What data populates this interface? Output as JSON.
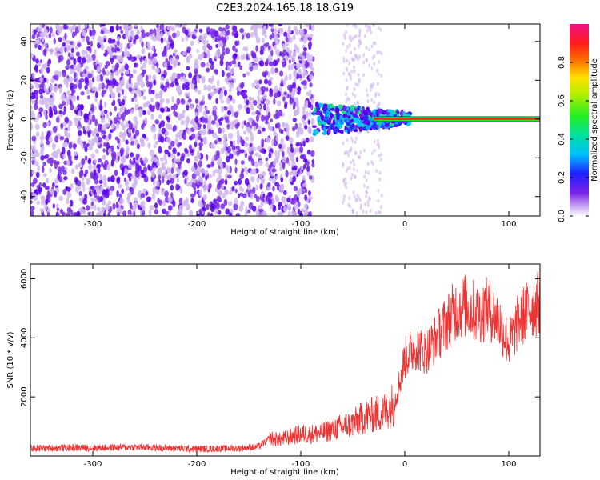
{
  "figure_title": "C2E3.2024.165.18.18.G19",
  "colors": {
    "snr_line": "#ee3333",
    "scatter_low": "#cfb6ee",
    "scatter_mid": "#7a2be6",
    "scatter_high": "#5a00ee",
    "carrier_core": "#ff2a2a"
  },
  "chart_data": [
    {
      "type": "heatmap",
      "title": "",
      "xlabel": "Height of straight line (km)",
      "ylabel": "Frequency (Hz)",
      "xlim": [
        -360,
        130
      ],
      "ylim": [
        -50,
        49
      ],
      "x_ticks": [
        -300,
        -200,
        -100,
        0,
        100
      ],
      "y_ticks": [
        -40,
        -20,
        0,
        20,
        40
      ],
      "grid": false,
      "colorbar": {
        "label": "Normalized spectral amplitude",
        "range": [
          0.0,
          1.0
        ],
        "ticks": [
          0.0,
          0.2,
          0.4,
          0.6,
          0.8
        ],
        "colormap": "rainbow (purple-blue-cyan-green-yellow-red-magenta)"
      },
      "features": [
        {
          "x_range": [
            -360,
            -88
          ],
          "freq_range": [
            -50,
            49
          ],
          "amplitude": 0.05
        },
        {
          "x_range": [
            -88,
            5
          ],
          "freq_center": 0,
          "freq_halfwidth": 8,
          "amplitude": 0.4
        },
        {
          "x_range": [
            5,
            130
          ],
          "freq_center": 0,
          "freq_halfwidth": 1,
          "amplitude": 1.0
        }
      ]
    },
    {
      "type": "line",
      "title": "",
      "xlabel": "Height of straight line (km)",
      "ylabel": "SNR (10 * v/v)",
      "xlim": [
        -360,
        130
      ],
      "ylim": [
        0,
        6500
      ],
      "x_ticks": [
        -300,
        -200,
        -100,
        0,
        100
      ],
      "y_ticks": [
        2000,
        4000,
        6000
      ],
      "grid": false,
      "series": [
        {
          "x": [
            -360,
            -340,
            -320,
            -300,
            -280,
            -260,
            -240,
            -220,
            -200,
            -180,
            -160,
            -140,
            -130,
            -120,
            -110,
            -100,
            -90,
            -80,
            -70,
            -60,
            -50,
            -40,
            -30,
            -20,
            -10,
            -5,
            0,
            10,
            20,
            30,
            40,
            50,
            60,
            70,
            80,
            90,
            100,
            110,
            120,
            130
          ],
          "values": [
            260,
            270,
            280,
            270,
            290,
            300,
            280,
            260,
            240,
            250,
            260,
            320,
            600,
            550,
            650,
            750,
            750,
            780,
            900,
            1000,
            1100,
            1300,
            1400,
            1500,
            1800,
            2500,
            3300,
            3700,
            3500,
            4000,
            4500,
            5000,
            5100,
            4800,
            5000,
            4600,
            3800,
            4600,
            5000,
            5200
          ]
        }
      ]
    }
  ]
}
